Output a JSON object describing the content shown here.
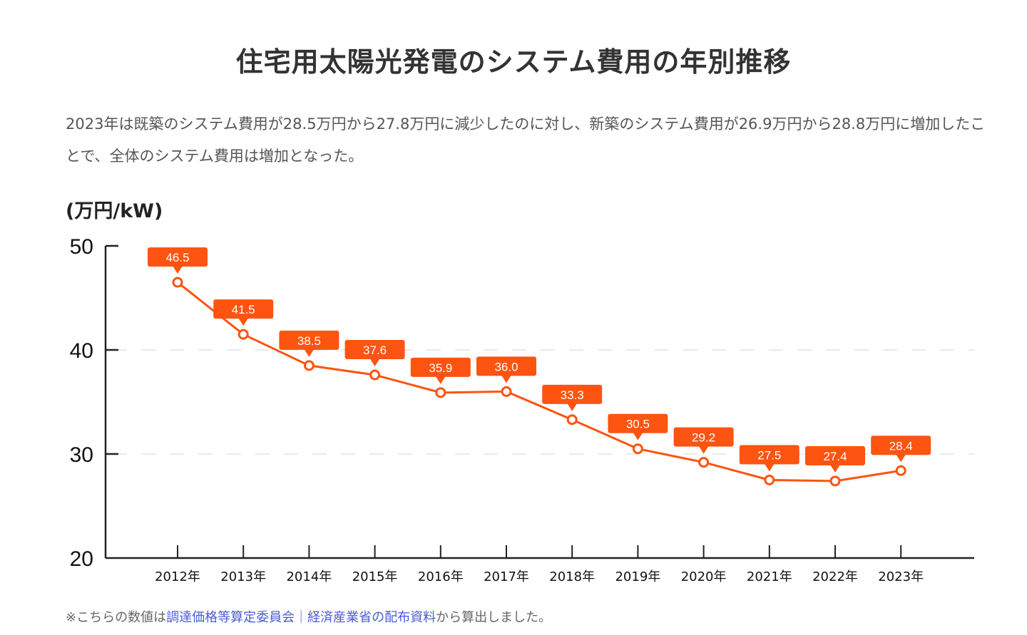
{
  "page": {
    "title": "住宅用太陽光発電のシステム費用の年別推移",
    "description": "2023年は既築のシステム費用が28.5万円から27.8万円に減少したのに対し、新築のシステム費用が26.9万円から28.8万円に増加したことで、全体のシステム費用は増加となった。",
    "footnote_prefix": "※こちらの数値は",
    "footnote_link": "調達価格等算定委員会｜経済産業省の配布資料",
    "footnote_suffix": "から算出しました。"
  },
  "colors": {
    "accent": "#fd5411",
    "axis": "#222222",
    "grid": "#dddddd"
  },
  "chart_data": {
    "type": "line",
    "title": "住宅用太陽光発電のシステム費用の年別推移",
    "ylabel": "(万円/kW)",
    "xlabel": "",
    "categories": [
      "2012年",
      "2013年",
      "2014年",
      "2015年",
      "2016年",
      "2017年",
      "2018年",
      "2019年",
      "2020年",
      "2021年",
      "2022年",
      "2023年"
    ],
    "series": [
      {
        "name": "システム費用",
        "values": [
          46.5,
          41.5,
          38.5,
          37.6,
          35.9,
          36.0,
          33.3,
          30.5,
          29.2,
          27.5,
          27.4,
          28.4
        ],
        "labels": [
          "46.5",
          "41.5",
          "38.5",
          "37.6",
          "35.9",
          "36.0",
          "33.3",
          "30.5",
          "29.2",
          "27.5",
          "27.4",
          "28.4"
        ]
      }
    ],
    "ylim": [
      20,
      50
    ],
    "yticks": [
      20,
      30,
      40,
      50
    ],
    "ytick_labels": [
      "20",
      "30",
      "40",
      "50"
    ],
    "grid": "dashed horizontal at 30 and 40",
    "legend": "none"
  }
}
